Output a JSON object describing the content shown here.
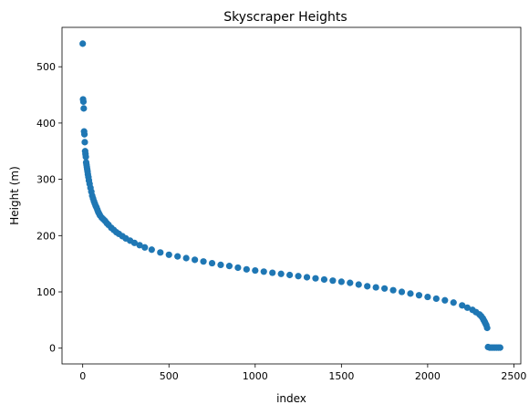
{
  "chart_data": {
    "type": "scatter",
    "title": "Skyscraper Heights",
    "xlabel": "index",
    "ylabel": "Height (m)",
    "xlim": [
      -120,
      2540
    ],
    "ylim": [
      -28,
      570
    ],
    "xticks": [
      "0",
      "500",
      "1000",
      "1500",
      "2000",
      "2500"
    ],
    "yticks": [
      "0",
      "100",
      "200",
      "300",
      "400",
      "500"
    ],
    "grid": false,
    "marker_color": "#1f77b4",
    "series": [
      {
        "x": [
          0,
          2,
          4,
          6,
          8,
          10,
          12,
          14,
          16,
          18,
          20,
          22,
          24,
          26,
          28,
          30,
          33,
          36,
          40,
          45,
          50,
          55,
          60,
          65,
          70,
          75,
          80,
          85,
          90,
          95,
          100,
          110,
          120,
          130,
          140,
          150,
          165,
          180,
          195,
          210,
          230,
          250,
          275,
          300,
          330,
          360,
          400,
          450,
          500,
          550,
          600,
          650,
          700,
          750,
          800,
          850,
          900,
          950,
          1000,
          1050,
          1100,
          1150,
          1200,
          1250,
          1300,
          1350,
          1400,
          1450,
          1500,
          1550,
          1600,
          1650,
          1700,
          1750,
          1800,
          1850,
          1900,
          1950,
          2000,
          2050,
          2100,
          2150,
          2200,
          2230,
          2260,
          2280,
          2300,
          2310,
          2320,
          2325,
          2330,
          2335,
          2340,
          2345,
          2350,
          2360,
          2370,
          2380,
          2390,
          2400,
          2410,
          2420
        ],
        "y": [
          541,
          442,
          438,
          426,
          385,
          380,
          366,
          350,
          345,
          340,
          330,
          326,
          322,
          318,
          314,
          309,
          304,
          298,
          292,
          285,
          278,
          271,
          266,
          261,
          257,
          253,
          250,
          246,
          242,
          239,
          236,
          232,
          229,
          226,
          222,
          219,
          214,
          210,
          206,
          203,
          199,
          195,
          191,
          187,
          183,
          179,
          175,
          170,
          166,
          163,
          160,
          157,
          154,
          151,
          148,
          146,
          143,
          140,
          138,
          136,
          134,
          132,
          130,
          128,
          126,
          124,
          122,
          120,
          118,
          116,
          113,
          110,
          108,
          106,
          103,
          100,
          97,
          94,
          91,
          88,
          85,
          81,
          76,
          72,
          68,
          64,
          60,
          57,
          53,
          50,
          47,
          44,
          41,
          36,
          2,
          1,
          1,
          1,
          1,
          1,
          1,
          1
        ]
      }
    ]
  }
}
